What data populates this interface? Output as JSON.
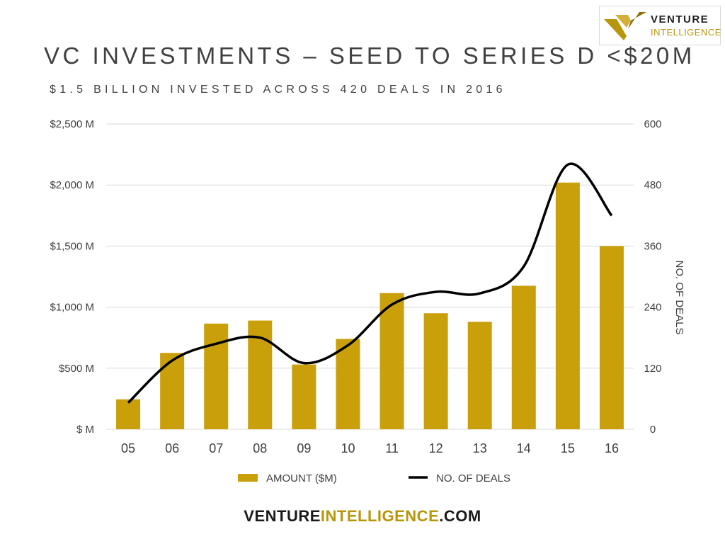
{
  "logo": {
    "word1": "VENTURE",
    "word2": "INTELLIGENCE",
    "icon": "venture-intelligence-v-logo"
  },
  "title": "VC INVESTMENTS – SEED TO SERIES D <$20M",
  "subtitle": "$1.5 BILLION INVESTED ACROSS 420 DEALS IN 2016",
  "footer": {
    "part1": "VENTURE",
    "part2": "INTELLIGENCE",
    "part3": ".COM"
  },
  "colors": {
    "bar": "#c9a00a",
    "line": "#000000",
    "text": "#404040",
    "brand_gold": "#b8960c",
    "grid": "#d9d9d9"
  },
  "chart_data": {
    "type": "bar",
    "categories": [
      "05",
      "06",
      "07",
      "08",
      "09",
      "10",
      "11",
      "12",
      "13",
      "14",
      "15",
      "16"
    ],
    "series": [
      {
        "name": "AMOUNT ($M)",
        "type": "bar",
        "axis": "left",
        "values": [
          245,
          625,
          865,
          890,
          530,
          740,
          1115,
          950,
          880,
          1175,
          2020,
          1500
        ]
      },
      {
        "name": "NO. OF DEALS",
        "type": "line",
        "axis": "right",
        "values": [
          52,
          135,
          168,
          180,
          130,
          165,
          245,
          270,
          267,
          320,
          520,
          420
        ]
      }
    ],
    "left_axis": {
      "ticks": [
        "$ M",
        "$500 M",
        "$1,000 M",
        "$1,500 M",
        "$2,000 M",
        "$2,500 M"
      ],
      "range": [
        0,
        2500
      ]
    },
    "right_axis": {
      "label": "NO. OF DEALS",
      "ticks": [
        "0",
        "120",
        "240",
        "360",
        "480",
        "600"
      ],
      "range": [
        0,
        600
      ]
    },
    "grid": true,
    "legend": "bottom"
  }
}
